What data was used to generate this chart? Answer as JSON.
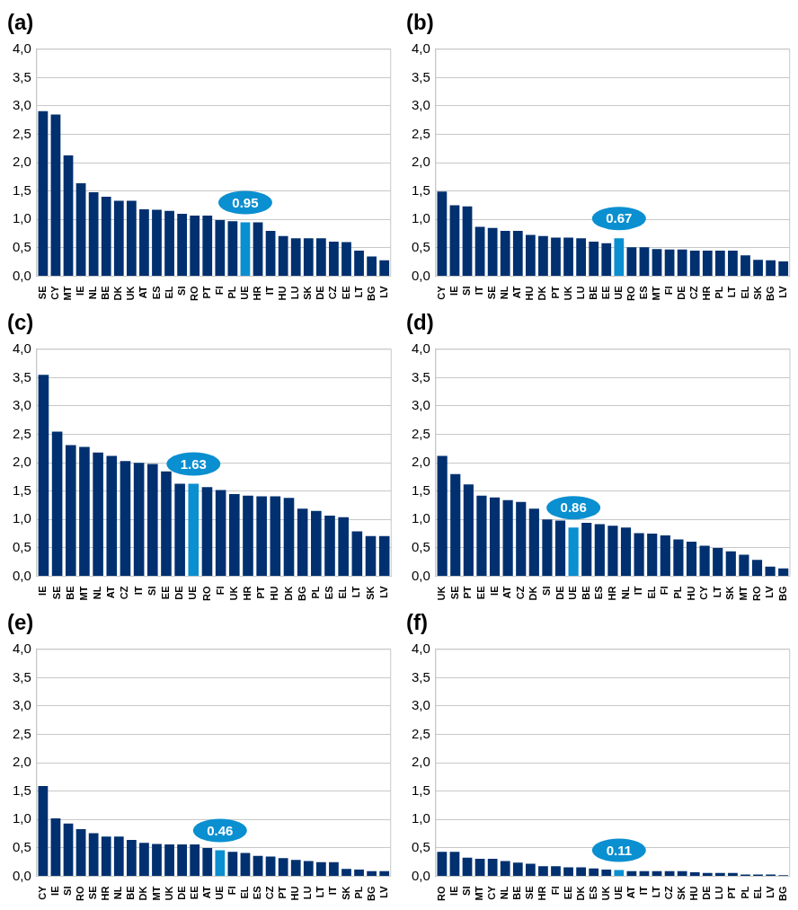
{
  "chart_data": [
    {
      "type": "bar",
      "title": "(a)",
      "categories": [
        "SE",
        "CY",
        "MT",
        "IE",
        "NL",
        "BE",
        "DK",
        "UK",
        "AT",
        "ES",
        "EL",
        "SI",
        "RO",
        "PT",
        "FI",
        "PL",
        "UE",
        "HR",
        "IT",
        "HU",
        "LU",
        "SK",
        "DE",
        "CZ",
        "EE",
        "LT",
        "BG",
        "LV"
      ],
      "values": [
        2.91,
        2.85,
        2.13,
        1.64,
        1.48,
        1.4,
        1.33,
        1.33,
        1.18,
        1.17,
        1.15,
        1.1,
        1.07,
        1.07,
        0.99,
        0.97,
        0.95,
        0.95,
        0.8,
        0.71,
        0.67,
        0.67,
        0.67,
        0.61,
        0.6,
        0.45,
        0.35,
        0.28
      ],
      "colors": [
        "#00306f",
        "#00306f",
        "#00306f",
        "#00306f",
        "#00306f",
        "#00306f",
        "#00306f",
        "#00306f",
        "#00306f",
        "#00306f",
        "#00306f",
        "#00306f",
        "#00306f",
        "#00306f",
        "#00306f",
        "#00306f",
        "#0a8fd0",
        "#00306f",
        "#00306f",
        "#00306f",
        "#00306f",
        "#00306f",
        "#00306f",
        "#00306f",
        "#00306f",
        "#00306f",
        "#00306f",
        "#00306f"
      ],
      "value_labels": [
        null,
        null,
        null,
        null,
        null,
        null,
        null,
        null,
        null,
        null,
        null,
        null,
        null,
        null,
        null,
        null,
        "0.95",
        null,
        null,
        null,
        null,
        null,
        null,
        null,
        null,
        null,
        null,
        null
      ],
      "ylim": [
        0,
        4
      ],
      "yticks": [
        {
          "value": 0,
          "label": "0,0"
        },
        {
          "value": 0.5,
          "label": "0,5"
        },
        {
          "value": 1,
          "label": "1,0"
        },
        {
          "value": 1.5,
          "label": "1,5"
        },
        {
          "value": 2,
          "label": "2,0"
        },
        {
          "value": 2.5,
          "label": "2,5"
        },
        {
          "value": 3,
          "label": "3,0"
        },
        {
          "value": 3.5,
          "label": "3,5"
        },
        {
          "value": 4,
          "label": "4,0"
        }
      ],
      "grid": "y"
    },
    {
      "type": "bar",
      "title": "(b)",
      "categories": [
        "CY",
        "IE",
        "SI",
        "IT",
        "SE",
        "NL",
        "AT",
        "HU",
        "DK",
        "PT",
        "UK",
        "LU",
        "BE",
        "EE",
        "UE",
        "RO",
        "ES",
        "MT",
        "FI",
        "DE",
        "CZ",
        "HR",
        "PL",
        "LT",
        "EL",
        "SK",
        "BG",
        "LV"
      ],
      "values": [
        1.49,
        1.25,
        1.23,
        0.87,
        0.85,
        0.8,
        0.8,
        0.73,
        0.71,
        0.68,
        0.68,
        0.67,
        0.61,
        0.58,
        0.67,
        0.51,
        0.51,
        0.48,
        0.47,
        0.47,
        0.45,
        0.45,
        0.45,
        0.45,
        0.37,
        0.29,
        0.28,
        0.26
      ],
      "colors": [
        "#00306f",
        "#00306f",
        "#00306f",
        "#00306f",
        "#00306f",
        "#00306f",
        "#00306f",
        "#00306f",
        "#00306f",
        "#00306f",
        "#00306f",
        "#00306f",
        "#00306f",
        "#00306f",
        "#0a8fd0",
        "#00306f",
        "#00306f",
        "#00306f",
        "#00306f",
        "#00306f",
        "#00306f",
        "#00306f",
        "#00306f",
        "#00306f",
        "#00306f",
        "#00306f",
        "#00306f",
        "#00306f"
      ],
      "value_labels": [
        null,
        null,
        null,
        null,
        null,
        null,
        null,
        null,
        null,
        null,
        null,
        null,
        null,
        null,
        "0.67",
        null,
        null,
        null,
        null,
        null,
        null,
        null,
        null,
        null,
        null,
        null,
        null,
        null
      ],
      "ylim": [
        0,
        4
      ],
      "yticks": [
        {
          "value": 0,
          "label": "0,0"
        },
        {
          "value": 0.5,
          "label": "0,5"
        },
        {
          "value": 1,
          "label": "1,0"
        },
        {
          "value": 1.5,
          "label": "1,5"
        },
        {
          "value": 2,
          "label": "2,0"
        },
        {
          "value": 2.5,
          "label": "2,5"
        },
        {
          "value": 3,
          "label": "3,0"
        },
        {
          "value": 3.5,
          "label": "3,5"
        },
        {
          "value": 4,
          "label": "4,0"
        }
      ],
      "grid": "y"
    },
    {
      "type": "bar",
      "title": "(c)",
      "categories": [
        "IE",
        "SE",
        "BE",
        "MT",
        "NL",
        "AT",
        "CZ",
        "IT",
        "SI",
        "EE",
        "DE",
        "UE",
        "RO",
        "FI",
        "UK",
        "HR",
        "PT",
        "HU",
        "DK",
        "BG",
        "PL",
        "ES",
        "EL",
        "LT",
        "SK",
        "LV"
      ],
      "values": [
        3.55,
        2.55,
        2.31,
        2.28,
        2.18,
        2.12,
        2.03,
        2.0,
        1.98,
        1.85,
        1.63,
        1.63,
        1.57,
        1.52,
        1.45,
        1.42,
        1.41,
        1.41,
        1.38,
        1.19,
        1.15,
        1.07,
        1.04,
        0.79,
        0.71,
        0.71
      ],
      "colors": [
        "#00306f",
        "#00306f",
        "#00306f",
        "#00306f",
        "#00306f",
        "#00306f",
        "#00306f",
        "#00306f",
        "#00306f",
        "#00306f",
        "#00306f",
        "#0a8fd0",
        "#00306f",
        "#00306f",
        "#00306f",
        "#00306f",
        "#00306f",
        "#00306f",
        "#00306f",
        "#00306f",
        "#00306f",
        "#00306f",
        "#00306f",
        "#00306f",
        "#00306f",
        "#00306f"
      ],
      "value_labels": [
        null,
        null,
        null,
        null,
        null,
        null,
        null,
        null,
        null,
        null,
        null,
        "1.63",
        null,
        null,
        null,
        null,
        null,
        null,
        null,
        null,
        null,
        null,
        null,
        null,
        null,
        null
      ],
      "ylim": [
        0,
        4
      ],
      "yticks": [
        {
          "value": 0,
          "label": "0,0"
        },
        {
          "value": 0.5,
          "label": "0,5"
        },
        {
          "value": 1,
          "label": "1,0"
        },
        {
          "value": 1.5,
          "label": "1,5"
        },
        {
          "value": 2,
          "label": "2,0"
        },
        {
          "value": 2.5,
          "label": "2,5"
        },
        {
          "value": 3,
          "label": "3,0"
        },
        {
          "value": 3.5,
          "label": "3,5"
        },
        {
          "value": 4,
          "label": "4,0"
        }
      ],
      "grid": "y"
    },
    {
      "type": "bar",
      "title": "(d)",
      "categories": [
        "UK",
        "SE",
        "PT",
        "EE",
        "IE",
        "AT",
        "CZ",
        "DK",
        "SI",
        "DE",
        "UE",
        "BE",
        "ES",
        "HR",
        "NL",
        "IT",
        "EL",
        "FI",
        "PL",
        "HU",
        "CY",
        "LT",
        "SK",
        "MT",
        "RO",
        "LV",
        "BG"
      ],
      "values": [
        2.12,
        1.8,
        1.62,
        1.42,
        1.39,
        1.34,
        1.31,
        1.19,
        1.0,
        0.98,
        0.86,
        0.94,
        0.92,
        0.89,
        0.86,
        0.76,
        0.75,
        0.72,
        0.65,
        0.61,
        0.54,
        0.5,
        0.44,
        0.38,
        0.29,
        0.17,
        0.14
      ],
      "colors": [
        "#00306f",
        "#00306f",
        "#00306f",
        "#00306f",
        "#00306f",
        "#00306f",
        "#00306f",
        "#00306f",
        "#00306f",
        "#00306f",
        "#0a8fd0",
        "#00306f",
        "#00306f",
        "#00306f",
        "#00306f",
        "#00306f",
        "#00306f",
        "#00306f",
        "#00306f",
        "#00306f",
        "#00306f",
        "#00306f",
        "#00306f",
        "#00306f",
        "#00306f",
        "#00306f",
        "#00306f"
      ],
      "value_labels": [
        null,
        null,
        null,
        null,
        null,
        null,
        null,
        null,
        null,
        null,
        "0.86",
        null,
        null,
        null,
        null,
        null,
        null,
        null,
        null,
        null,
        null,
        null,
        null,
        null,
        null,
        null,
        null
      ],
      "ylim": [
        0,
        4
      ],
      "yticks": [
        {
          "value": 0,
          "label": "0,0"
        },
        {
          "value": 0.5,
          "label": "0,5"
        },
        {
          "value": 1,
          "label": "1,0"
        },
        {
          "value": 1.5,
          "label": "1,5"
        },
        {
          "value": 2,
          "label": "2,0"
        },
        {
          "value": 2.5,
          "label": "2,5"
        },
        {
          "value": 3,
          "label": "3,0"
        },
        {
          "value": 3.5,
          "label": "3,5"
        },
        {
          "value": 4,
          "label": "4,0"
        }
      ],
      "grid": "y"
    },
    {
      "type": "bar",
      "title": "(e)",
      "categories": [
        "CY",
        "IE",
        "SI",
        "RO",
        "SE",
        "HR",
        "NL",
        "BE",
        "DK",
        "MT",
        "UK",
        "DE",
        "EE",
        "AT",
        "UE",
        "FI",
        "EL",
        "ES",
        "CZ",
        "PT",
        "HU",
        "LU",
        "LT",
        "IT",
        "SK",
        "PL",
        "BG",
        "LV"
      ],
      "values": [
        1.59,
        1.02,
        0.93,
        0.83,
        0.76,
        0.7,
        0.7,
        0.64,
        0.59,
        0.57,
        0.56,
        0.56,
        0.56,
        0.5,
        0.46,
        0.43,
        0.41,
        0.36,
        0.35,
        0.32,
        0.29,
        0.27,
        0.25,
        0.25,
        0.13,
        0.12,
        0.09,
        0.09
      ],
      "colors": [
        "#00306f",
        "#00306f",
        "#00306f",
        "#00306f",
        "#00306f",
        "#00306f",
        "#00306f",
        "#00306f",
        "#00306f",
        "#00306f",
        "#00306f",
        "#00306f",
        "#00306f",
        "#00306f",
        "#0a8fd0",
        "#00306f",
        "#00306f",
        "#00306f",
        "#00306f",
        "#00306f",
        "#00306f",
        "#00306f",
        "#00306f",
        "#00306f",
        "#00306f",
        "#00306f",
        "#00306f",
        "#00306f"
      ],
      "value_labels": [
        null,
        null,
        null,
        null,
        null,
        null,
        null,
        null,
        null,
        null,
        null,
        null,
        null,
        null,
        "0.46",
        null,
        null,
        null,
        null,
        null,
        null,
        null,
        null,
        null,
        null,
        null,
        null,
        null
      ],
      "ylim": [
        0,
        4
      ],
      "yticks": [
        {
          "value": 0,
          "label": "0,0"
        },
        {
          "value": 0.5,
          "label": "0,5"
        },
        {
          "value": 1,
          "label": "1,0"
        },
        {
          "value": 1.5,
          "label": "1,5"
        },
        {
          "value": 2,
          "label": "2,0"
        },
        {
          "value": 2.5,
          "label": "2,5"
        },
        {
          "value": 3,
          "label": "3,0"
        },
        {
          "value": 3.5,
          "label": "3,5"
        },
        {
          "value": 4,
          "label": "4,0"
        }
      ],
      "grid": "y"
    },
    {
      "type": "bar",
      "title": "(f)",
      "categories": [
        "RO",
        "IE",
        "SI",
        "MT",
        "CY",
        "NL",
        "BE",
        "SE",
        "HR",
        "FI",
        "EE",
        "DK",
        "ES",
        "UK",
        "UE",
        "AT",
        "IT",
        "LT",
        "CZ",
        "SK",
        "HU",
        "DE",
        "LU",
        "PT",
        "PL",
        "EL",
        "LV",
        "BG"
      ],
      "values": [
        0.43,
        0.43,
        0.33,
        0.31,
        0.31,
        0.27,
        0.24,
        0.22,
        0.18,
        0.18,
        0.16,
        0.16,
        0.14,
        0.12,
        0.11,
        0.09,
        0.09,
        0.09,
        0.09,
        0.09,
        0.07,
        0.06,
        0.06,
        0.06,
        0.03,
        0.03,
        0.03,
        0.02
      ],
      "colors": [
        "#00306f",
        "#00306f",
        "#00306f",
        "#00306f",
        "#00306f",
        "#00306f",
        "#00306f",
        "#00306f",
        "#00306f",
        "#00306f",
        "#00306f",
        "#00306f",
        "#00306f",
        "#00306f",
        "#0a8fd0",
        "#00306f",
        "#00306f",
        "#00306f",
        "#00306f",
        "#00306f",
        "#00306f",
        "#00306f",
        "#00306f",
        "#00306f",
        "#00306f",
        "#00306f",
        "#00306f",
        "#00306f"
      ],
      "value_labels": [
        null,
        null,
        null,
        null,
        null,
        null,
        null,
        null,
        null,
        null,
        null,
        null,
        null,
        null,
        "0.11",
        null,
        null,
        null,
        null,
        null,
        null,
        null,
        null,
        null,
        null,
        null,
        null,
        null
      ],
      "ylim": [
        0,
        4
      ],
      "yticks": [
        {
          "value": 0,
          "label": "0,0"
        },
        {
          "value": 0.5,
          "label": "0,5"
        },
        {
          "value": 1,
          "label": "1,0"
        },
        {
          "value": 1.5,
          "label": "1,5"
        },
        {
          "value": 2,
          "label": "2,0"
        },
        {
          "value": 2.5,
          "label": "2,5"
        },
        {
          "value": 3,
          "label": "3,0"
        },
        {
          "value": 3.5,
          "label": "3,5"
        },
        {
          "value": 4,
          "label": "4,0"
        }
      ],
      "grid": "y"
    }
  ]
}
